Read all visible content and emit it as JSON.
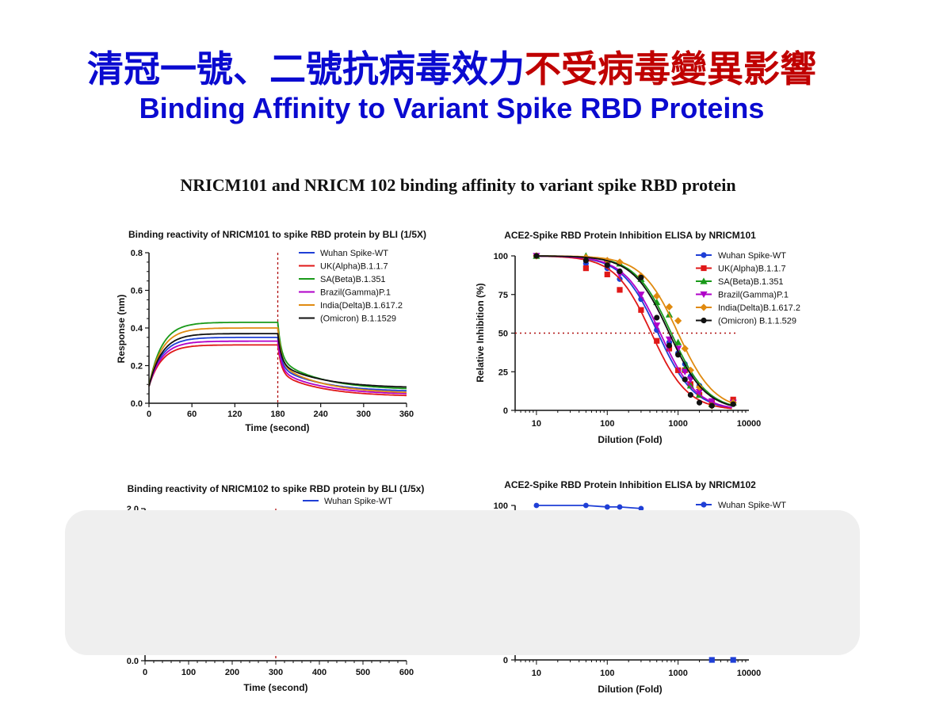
{
  "slide": {
    "title_cn_blue": "清冠一號、二號抗病毒效力",
    "title_cn_red": "不受病毒變異影響",
    "title_en": "Binding Affinity to Variant Spike RBD Proteins",
    "figure_title": "NRICM101 and NRICM 102 binding affinity to variant spike RBD protein"
  },
  "colors": {
    "title_blue": "#0a0ad0",
    "title_red": "#c00000",
    "overlay": "#efefef"
  },
  "chart_data": [
    {
      "id": "bli101",
      "type": "line",
      "title": "Binding reactivity of NRICM101 to spike RBD protein by BLI (1/5X)",
      "xlabel": "Time (second)",
      "ylabel": "Response (nm)",
      "xlim": [
        0,
        360
      ],
      "ylim": [
        0,
        0.8
      ],
      "xticks": [
        "0",
        "60",
        "120",
        "180",
        "240",
        "300",
        "360"
      ],
      "yticks": [
        "0.0",
        "0.2",
        "0.4",
        "0.6",
        "0.8"
      ],
      "vline_x": 180,
      "legend": "top-right",
      "series": [
        {
          "name": "Wuhan Spike-WT",
          "color": "#1f3fd6",
          "plateau": 0.35,
          "end": 0.06
        },
        {
          "name": "UK(Alpha)B.1.1.7",
          "color": "#e01818",
          "plateau": 0.31,
          "end": 0.035
        },
        {
          "name": "SA(Beta)B.1.351",
          "color": "#1a9a1a",
          "plateau": 0.43,
          "end": 0.07
        },
        {
          "name": "Brazil(Gamma)P.1",
          "color": "#b000c8",
          "plateau": 0.33,
          "end": 0.045
        },
        {
          "name": "India(Delta)B.1.617.2",
          "color": "#e08a10",
          "plateau": 0.4,
          "end": 0.05
        },
        {
          "name": "(Omicron) B.1.1529",
          "color": "#111111",
          "plateau": 0.37,
          "end": 0.08
        }
      ]
    },
    {
      "id": "elisa101",
      "type": "scatter",
      "title": "ACE2-Spike RBD Protein Inhibition ELISA by NRICM101",
      "xlabel": "Dilution (Fold)",
      "ylabel": "Relative Inhibition (%)",
      "xscale": "log",
      "xlim": [
        5,
        10000
      ],
      "ylim": [
        0,
        100
      ],
      "xticks": [
        "10",
        "100",
        "1000",
        "10000"
      ],
      "yticks": [
        "0",
        "25",
        "50",
        "75",
        "100"
      ],
      "hline_y": 50,
      "legend": "top-right",
      "x": [
        10,
        50,
        100,
        150,
        300,
        500,
        750,
        1000,
        1250,
        1500,
        2000,
        3000,
        6000
      ],
      "series": [
        {
          "name": "Wuhan Spike-WT",
          "color": "#1f3fd6",
          "marker": "circle",
          "ic50": 520,
          "values": [
            100,
            95,
            92,
            85,
            72,
            52,
            44,
            37,
            30,
            22,
            16,
            6,
            5
          ]
        },
        {
          "name": "UK(Alpha)B.1.1.7",
          "color": "#e01818",
          "marker": "square",
          "ic50": 420,
          "values": [
            100,
            92,
            88,
            78,
            65,
            45,
            40,
            26,
            26,
            17,
            10,
            5,
            7
          ]
        },
        {
          "name": "SA(Beta)B.1.351",
          "color": "#1a9a1a",
          "marker": "triangle",
          "ic50": 800,
          "values": [
            100,
            100,
            97,
            95,
            85,
            70,
            62,
            44,
            27,
            16,
            10,
            4,
            5
          ]
        },
        {
          "name": "Brazil(Gamma)P.1",
          "color": "#b000c8",
          "marker": "triangle-down",
          "ic50": 560,
          "values": [
            100,
            98,
            95,
            88,
            75,
            55,
            46,
            40,
            25,
            20,
            12,
            6,
            5
          ]
        },
        {
          "name": "India(Delta)B.1.617.2",
          "color": "#e08a10",
          "marker": "diamond",
          "ic50": 1000,
          "values": [
            100,
            99,
            97,
            96,
            87,
            74,
            67,
            58,
            40,
            26,
            15,
            3,
            5
          ]
        },
        {
          "name": "(Omicron) B.1.1.529",
          "color": "#111111",
          "marker": "circle",
          "ic50": 750,
          "values": [
            100,
            97,
            94,
            90,
            86,
            60,
            42,
            36,
            20,
            10,
            5,
            3,
            4
          ]
        }
      ]
    },
    {
      "id": "bli102",
      "type": "line",
      "title": "Binding reactivity of NRICM102 to spike RBD protein by BLI (1/5x)",
      "xlabel": "Time (second)",
      "xlim": [
        0,
        600
      ],
      "ylim": [
        0,
        2.0
      ],
      "xticks": [
        "0",
        "100",
        "200",
        "300",
        "400",
        "500",
        "600"
      ],
      "yticks": [
        "0.0",
        "2.0"
      ],
      "vline_x": 300,
      "legend": "top-right",
      "series": [
        {
          "name": "Wuhan Spike-WT",
          "color": "#1f3fd6"
        }
      ]
    },
    {
      "id": "elisa102",
      "type": "scatter",
      "title": "ACE2-Spike RBD Protein Inhibition ELISA by NRICM102",
      "xlabel": "Dilution (Fold)",
      "xscale": "log",
      "xlim": [
        5,
        10000
      ],
      "ylim": [
        0,
        100
      ],
      "xticks": [
        "10",
        "100",
        "1000",
        "10000"
      ],
      "yticks": [
        "0",
        "100"
      ],
      "legend": "top-right",
      "series": [
        {
          "name": "Wuhan Spike-WT",
          "color": "#1f3fd6",
          "top_points": [
            [
              10,
              100
            ],
            [
              50,
              100
            ],
            [
              100,
              99
            ],
            [
              150,
              99
            ],
            [
              300,
              98
            ]
          ],
          "bottom_points": [
            [
              3000,
              0
            ],
            [
              6000,
              0
            ]
          ]
        }
      ]
    }
  ]
}
